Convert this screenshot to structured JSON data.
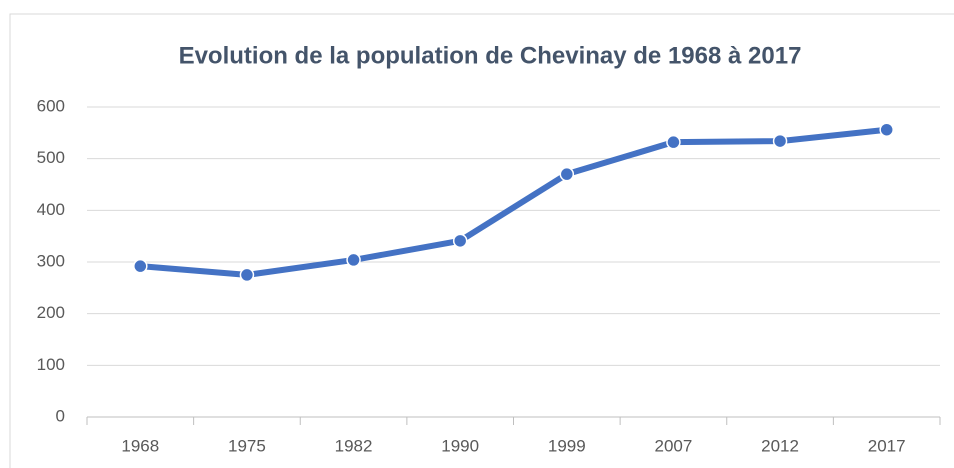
{
  "chart_data": {
    "type": "line",
    "title": "Evolution de la population de Chevinay de 1968 à 2017",
    "categories": [
      "1968",
      "1975",
      "1982",
      "1990",
      "1999",
      "2007",
      "2012",
      "2017"
    ],
    "series": [
      {
        "name": "Population",
        "color": "#4472c4",
        "values": [
          292,
          275,
          304,
          341,
          470,
          532,
          534,
          556
        ]
      }
    ],
    "ylim": [
      0,
      600
    ],
    "yticks": [
      0,
      100,
      200,
      300,
      400,
      500,
      600
    ],
    "grid": true
  }
}
